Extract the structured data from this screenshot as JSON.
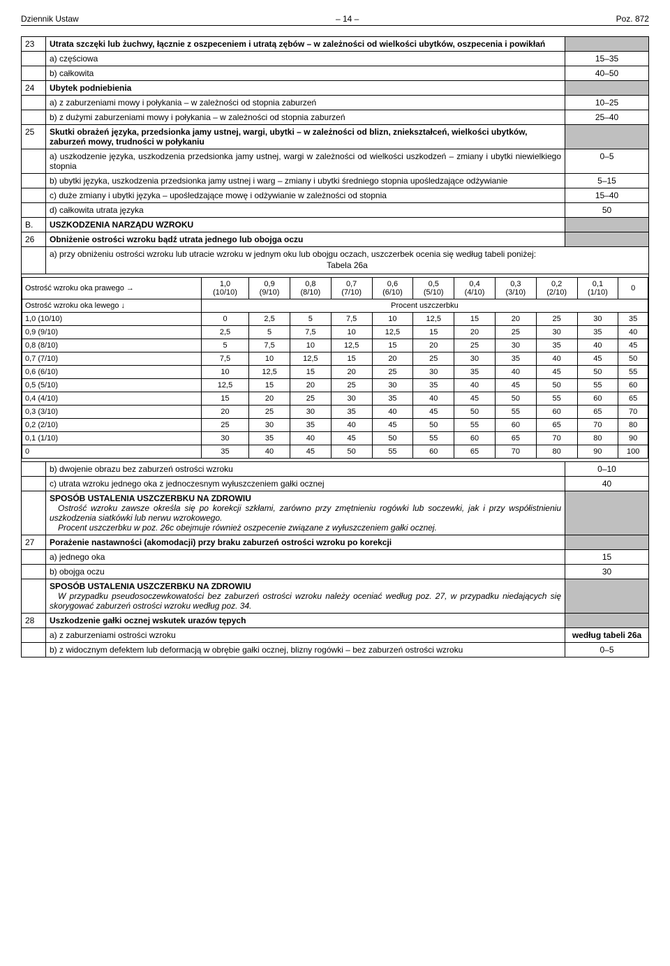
{
  "header": {
    "left": "Dziennik Ustaw",
    "mid": "– 14 –",
    "right": "Poz. 872"
  },
  "rows": [
    {
      "num": "23",
      "text": "Utrata szczęki lub żuchwy, łącznie z oszpeceniem i utratą zębów – w zależności od wielkości ubytków, oszpecenia i powikłań",
      "val": "",
      "bold": true,
      "justify": true,
      "gray": true
    },
    {
      "num": "",
      "text": "a) częściowa",
      "val": "15–35"
    },
    {
      "num": "",
      "text": "b) całkowita",
      "val": "40–50"
    },
    {
      "num": "24",
      "text": "Ubytek podniebienia",
      "val": "",
      "bold": true,
      "gray": true
    },
    {
      "num": "",
      "text": "a) z zaburzeniami mowy i połykania – w zależności od stopnia zaburzeń",
      "val": "10–25"
    },
    {
      "num": "",
      "text": "b) z dużymi zaburzeniami mowy i połykania – w zależności od stopnia zaburzeń",
      "val": "25–40"
    },
    {
      "num": "25",
      "text": "Skutki obrażeń języka, przedsionka jamy ustnej, wargi, ubytki – w zależności od blizn, zniekształceń, wielkości ubytków, zaburzeń mowy, trudności w połykaniu",
      "val": "",
      "bold": true,
      "gray": true
    },
    {
      "num": "",
      "text": "a) uszkodzenie języka, uszkodzenia przedsionka jamy ustnej, wargi w zależności od wielkości uszkodzeń – zmiany i ubytki niewielkiego stopnia",
      "val": "0–5",
      "justify": true
    },
    {
      "num": "",
      "text": "b) ubytki języka, uszkodzenia przedsionka jamy ustnej i warg – zmiany i ubytki średniego stopnia upośledzające odżywianie",
      "val": "5–15",
      "justify": true
    },
    {
      "num": "",
      "text": "c) duże zmiany i ubytki języka – upośledzające mowę i odżywianie w zależności od stopnia",
      "val": "15–40",
      "justify": true
    },
    {
      "num": "",
      "text": "d) całkowita utrata języka",
      "val": "50"
    },
    {
      "num": "B.",
      "text": "USZKODZENIA NARZĄDU WZROKU",
      "val": "",
      "bold": true,
      "gray": true
    },
    {
      "num": "26",
      "text": "Obniżenie ostrości wzroku bądź utrata jednego lub obojga oczu",
      "val": "",
      "bold": true,
      "gray": true
    }
  ],
  "row26a": "a) przy obniżeniu ostrości wzroku lub utracie wzroku w jednym oku lub obojgu oczach, uszczerbek ocenia się według tabeli poniżej:",
  "tabela_label": "Tabela 26a",
  "vision": {
    "corner_top": "Ostrość wzroku oka prawego →",
    "corner_mid": "Ostrość wzroku oka lewego ↓",
    "procent": "Procent uszczerbku",
    "cols": [
      "1,0 (10/10)",
      "0,9 (9/10)",
      "0,8 (8/10)",
      "0,7 (7/10)",
      "0,6 (6/10)",
      "0,5 (5/10)",
      "0,4 (4/10)",
      "0,3 (3/10)",
      "0,2 (2/10)",
      "0,1 (1/10)",
      "0"
    ],
    "rows": [
      {
        "h": "1,0 (10/10)",
        "v": [
          "0",
          "2,5",
          "5",
          "7,5",
          "10",
          "12,5",
          "15",
          "20",
          "25",
          "30",
          "35"
        ]
      },
      {
        "h": "0,9 (9/10)",
        "v": [
          "2,5",
          "5",
          "7,5",
          "10",
          "12,5",
          "15",
          "20",
          "25",
          "30",
          "35",
          "40"
        ]
      },
      {
        "h": "0,8 (8/10)",
        "v": [
          "5",
          "7,5",
          "10",
          "12,5",
          "15",
          "20",
          "25",
          "30",
          "35",
          "40",
          "45"
        ]
      },
      {
        "h": "0,7 (7/10)",
        "v": [
          "7,5",
          "10",
          "12,5",
          "15",
          "20",
          "25",
          "30",
          "35",
          "40",
          "45",
          "50"
        ]
      },
      {
        "h": "0,6 (6/10)",
        "v": [
          "10",
          "12,5",
          "15",
          "20",
          "25",
          "30",
          "35",
          "40",
          "45",
          "50",
          "55"
        ]
      },
      {
        "h": "0,5 (5/10)",
        "v": [
          "12,5",
          "15",
          "20",
          "25",
          "30",
          "35",
          "40",
          "45",
          "50",
          "55",
          "60"
        ]
      },
      {
        "h": "0,4 (4/10)",
        "v": [
          "15",
          "20",
          "25",
          "30",
          "35",
          "40",
          "45",
          "50",
          "55",
          "60",
          "65"
        ]
      },
      {
        "h": "0,3 (3/10)",
        "v": [
          "20",
          "25",
          "30",
          "35",
          "40",
          "45",
          "50",
          "55",
          "60",
          "65",
          "70"
        ]
      },
      {
        "h": "0,2 (2/10)",
        "v": [
          "25",
          "30",
          "35",
          "40",
          "45",
          "50",
          "55",
          "60",
          "65",
          "70",
          "80"
        ]
      },
      {
        "h": "0,1 (1/10)",
        "v": [
          "30",
          "35",
          "40",
          "45",
          "50",
          "55",
          "60",
          "65",
          "70",
          "80",
          "90"
        ]
      },
      {
        "h": "0",
        "v": [
          "35",
          "40",
          "45",
          "50",
          "55",
          "60",
          "65",
          "70",
          "80",
          "90",
          "100"
        ]
      }
    ]
  },
  "rows2": [
    {
      "num": "",
      "text": "b) dwojenie obrazu bez zaburzeń ostrości wzroku",
      "val": "0–10"
    },
    {
      "num": "",
      "text": "c) utrata wzroku jednego oka z jednoczesnym wyłuszczeniem gałki ocznej",
      "val": "40"
    }
  ],
  "sposob1": {
    "title": "SPOSÓB USTALENIA USZCZERBKU NA ZDROWIU",
    "p1": "Ostrość wzroku zawsze określa się po korekcji szkłami, zarówno przy zmętnieniu rogówki lub soczewki, jak i przy współistnieniu uszkodzenia siatkówki lub nerwu wzrokowego.",
    "p2": "Procent uszczerbku w poz. 26c obejmuje również oszpecenie związane z wyłuszczeniem gałki ocznej."
  },
  "rows3": [
    {
      "num": "27",
      "text": "Porażenie nastawności (akomodacji) przy braku zaburzeń ostrości wzroku po korekcji",
      "val": "",
      "bold": true,
      "gray": true
    },
    {
      "num": "",
      "text": "a) jednego oka",
      "val": "15"
    },
    {
      "num": "",
      "text": "b) obojga oczu",
      "val": "30"
    }
  ],
  "sposob2": {
    "title": "SPOSÓB USTALENIA USZCZERBKU NA ZDROWIU",
    "p1": "W przypadku pseudosoczewkowatości bez zaburzeń ostrości wzroku należy oceniać według poz. 27, w przypadku niedających się skorygować zaburzeń ostrości wzroku według poz. 34."
  },
  "rows4": [
    {
      "num": "28",
      "text": "Uszkodzenie gałki ocznej wskutek urazów tępych",
      "val": "",
      "bold": true,
      "gray": true
    },
    {
      "num": "",
      "text": "a) z zaburzeniami ostrości wzroku",
      "val": "według tabeli 26a",
      "valbold": true
    },
    {
      "num": "",
      "text": "b) z widocznym defektem lub deformacją w obrębie gałki ocznej, blizny rogówki – bez zaburzeń ostrości wzroku",
      "val": "0–5"
    }
  ]
}
